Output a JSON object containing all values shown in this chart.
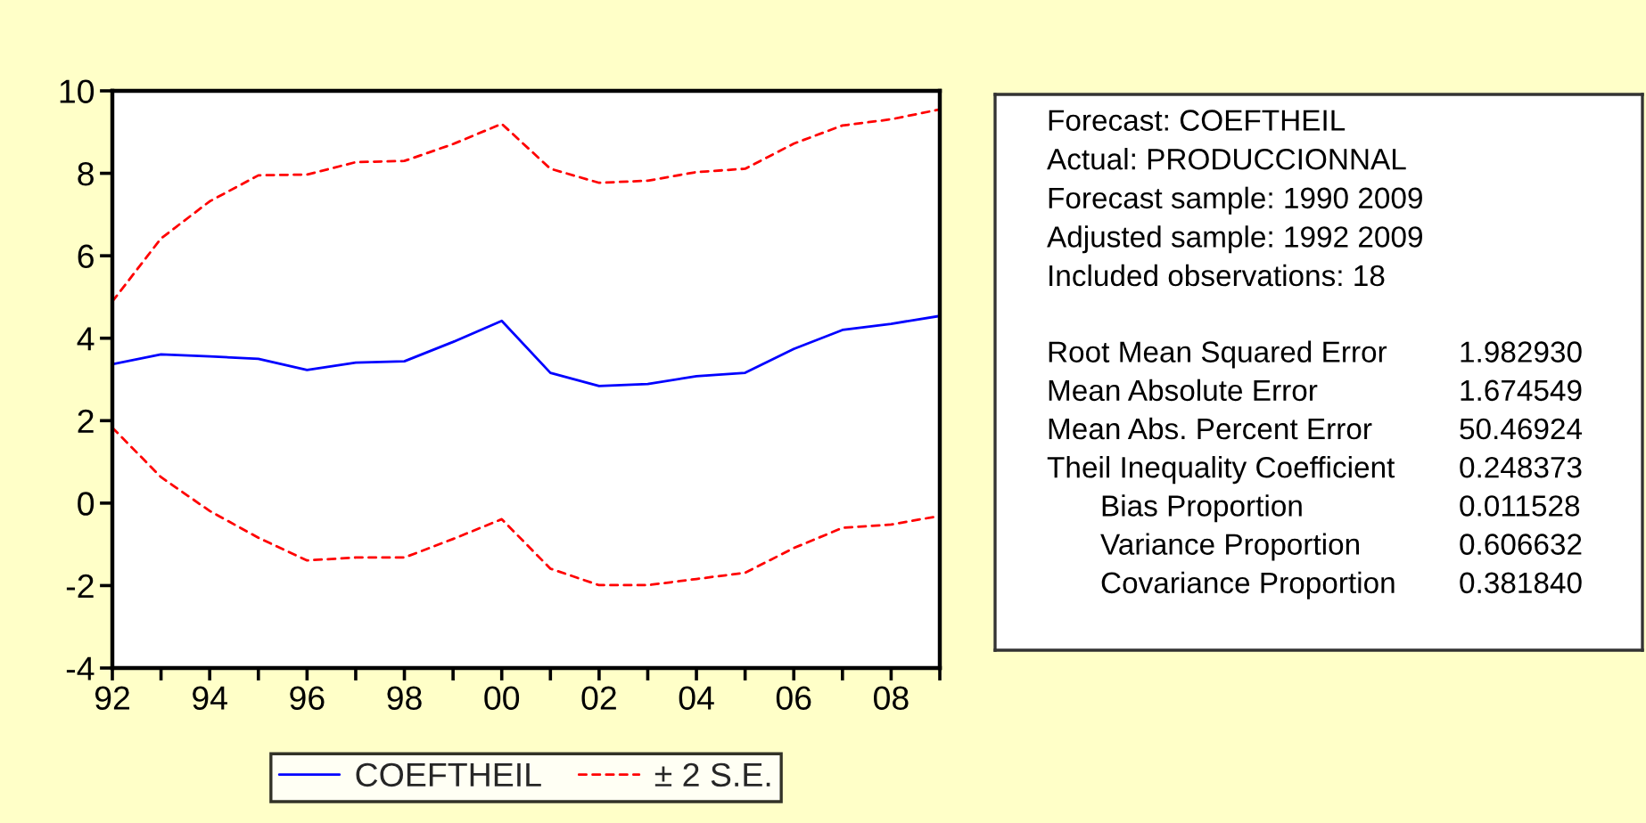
{
  "chart_data": [
    {
      "type": "line",
      "x": [
        1992,
        1993,
        1994,
        1995,
        1996,
        1997,
        1998,
        1999,
        2000,
        2001,
        2002,
        2003,
        2004,
        2005,
        2006,
        2007,
        2008,
        2009
      ],
      "xlim": [
        1992,
        2009
      ],
      "xticks": [
        {
          "value": 1992,
          "label": "92"
        },
        {
          "value": 1993,
          "label": null
        },
        {
          "value": 1994,
          "label": "94"
        },
        {
          "value": 1995,
          "label": null
        },
        {
          "value": 1996,
          "label": "96"
        },
        {
          "value": 1997,
          "label": null
        },
        {
          "value": 1998,
          "label": "98"
        },
        {
          "value": 1999,
          "label": null
        },
        {
          "value": 2000,
          "label": "00"
        },
        {
          "value": 2001,
          "label": null
        },
        {
          "value": 2002,
          "label": "02"
        },
        {
          "value": 2003,
          "label": null
        },
        {
          "value": 2004,
          "label": "04"
        },
        {
          "value": 2005,
          "label": null
        },
        {
          "value": 2006,
          "label": "06"
        },
        {
          "value": 2007,
          "label": null
        },
        {
          "value": 2008,
          "label": "08"
        },
        {
          "value": 2009,
          "label": null
        }
      ],
      "ylim": [
        -4,
        10
      ],
      "yticks": [
        -4,
        -2,
        0,
        2,
        4,
        6,
        8,
        10
      ],
      "legend": "bottom",
      "series": [
        {
          "name": "COEFTHEIL",
          "color": "#0000ff",
          "line_style": "solid",
          "values": [
            3.37,
            3.61,
            3.56,
            3.5,
            3.23,
            3.41,
            3.44,
            3.91,
            4.42,
            3.16,
            2.84,
            2.89,
            3.08,
            3.16,
            3.74,
            4.2,
            4.35,
            4.54
          ]
        },
        {
          "name": "± 2 S.E.",
          "color": "#ff0000",
          "line_style": "dashed",
          "values": [
            4.89,
            6.42,
            7.32,
            7.95,
            7.97,
            8.27,
            8.3,
            8.71,
            9.2,
            8.11,
            7.77,
            7.82,
            8.03,
            8.11,
            8.72,
            9.16,
            9.31,
            9.55
          ]
        },
        {
          "color": "#ff0000",
          "line_style": "dashed",
          "values": [
            1.83,
            0.63,
            -0.19,
            -0.84,
            -1.39,
            -1.32,
            -1.32,
            -0.87,
            -0.39,
            -1.59,
            -1.99,
            -1.99,
            -1.84,
            -1.69,
            -1.09,
            -0.6,
            -0.52,
            -0.31
          ]
        }
      ]
    },
    {
      "type": "other",
      "annotations": [
        "Forecast: COEFTHEIL",
        "Actual: PRODUCCIONNAL",
        "Forecast sample: 1990 2009",
        "Adjusted sample: 1992 2009",
        "Included observations: 18",
        "Root Mean Squared Error",
        "1.982930",
        "Mean Absolute Error",
        "1.674549",
        "Mean Abs. Percent Error",
        "50.46924",
        "Theil Inequality Coefficient",
        "0.248373",
        "Bias Proportion",
        "0.011528",
        "Variance Proportion",
        "0.606632",
        "Covariance Proportion",
        "0.381840"
      ]
    }
  ]
}
